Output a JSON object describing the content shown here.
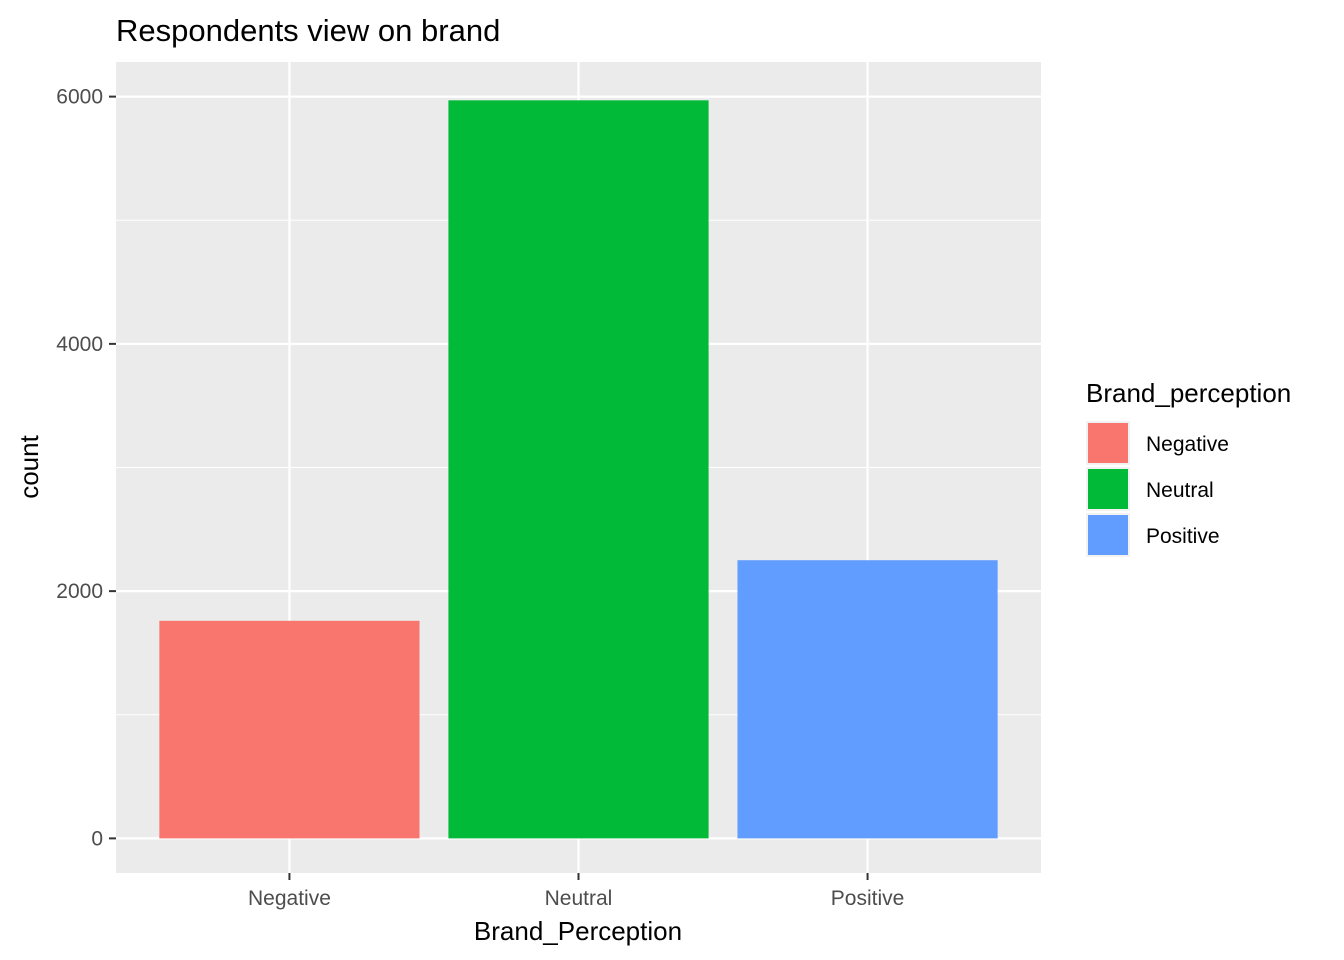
{
  "chart_data": {
    "type": "bar",
    "title": "Respondents view on brand",
    "xlabel": "Brand_Perception",
    "ylabel": "count",
    "categories": [
      "Negative",
      "Neutral",
      "Positive"
    ],
    "values": [
      1760,
      5970,
      2250
    ],
    "colors": [
      "#F8766D",
      "#00BA38",
      "#619CFF"
    ],
    "ylim": [
      -280,
      6280
    ],
    "yticks": [
      0,
      2000,
      4000,
      6000
    ],
    "ytick_labels": [
      "0",
      "2000",
      "4000",
      "6000"
    ],
    "grid": true,
    "panel_background": "#EBEBEB",
    "legend": {
      "title": "Brand_perception",
      "placement": "right",
      "items": [
        "Negative",
        "Neutral",
        "Positive"
      ]
    }
  }
}
